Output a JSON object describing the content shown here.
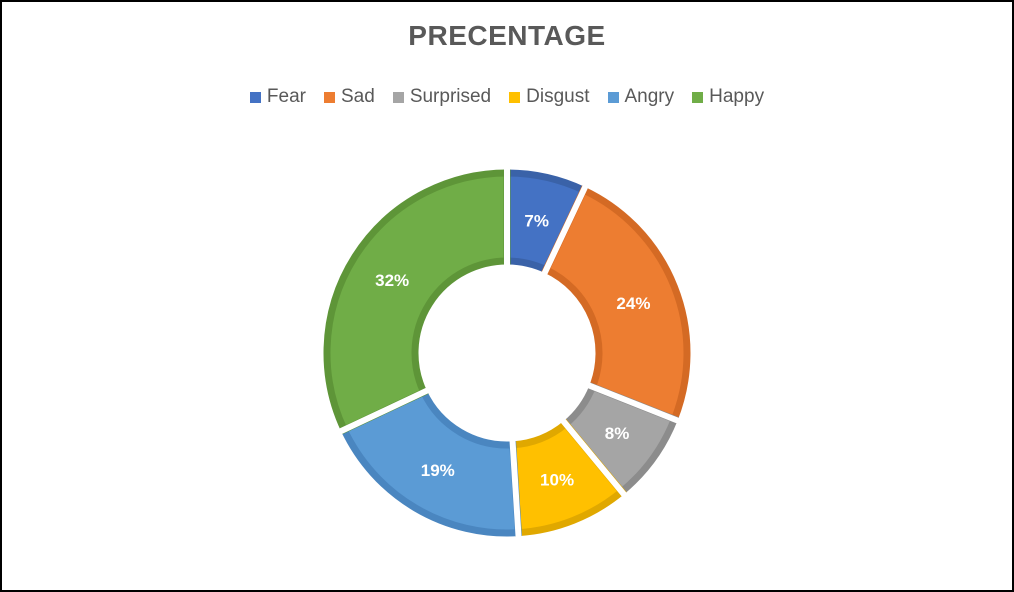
{
  "chart_data": {
    "type": "pie",
    "title": "PRECENTAGE",
    "legend_position": "top",
    "categories": [
      "Fear",
      "Sad",
      "Surprised",
      "Disgust",
      "Angry",
      "Happy"
    ],
    "values": [
      7,
      24,
      8,
      10,
      19,
      32
    ],
    "labels": [
      "7%",
      "24%",
      "8%",
      "10%",
      "19%",
      "32%"
    ],
    "colors": [
      "#4472C4",
      "#ED7D31",
      "#A5A5A5",
      "#FFC000",
      "#5B9BD5",
      "#70AD47"
    ],
    "border_colors": [
      "#3A62A8",
      "#D46A24",
      "#8C8C8C",
      "#E0A800",
      "#4A86C0",
      "#5E9538"
    ],
    "donut": true
  }
}
